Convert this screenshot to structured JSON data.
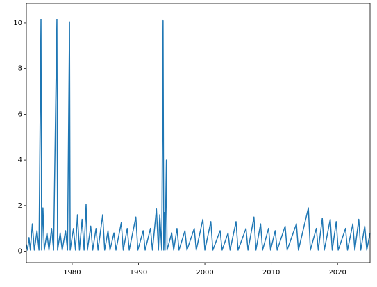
{
  "chart_data": {
    "type": "line",
    "color": "#1f77b4",
    "x": [
      1973.1,
      1973.3,
      1973.5,
      1973.7,
      1974.0,
      1974.3,
      1974.7,
      1975.0,
      1975.3,
      1975.4,
      1975.6,
      1975.8,
      1976.2,
      1976.5,
      1976.9,
      1977.2,
      1977.7,
      1977.8,
      1978.2,
      1978.5,
      1979.0,
      1979.3,
      1979.6,
      1979.7,
      1980.2,
      1980.5,
      1980.8,
      1981.1,
      1981.5,
      1981.8,
      1982.1,
      1982.3,
      1982.8,
      1983.1,
      1983.6,
      1983.9,
      1984.6,
      1984.9,
      1985.4,
      1985.7,
      1986.3,
      1986.6,
      1987.4,
      1987.7,
      1988.3,
      1988.6,
      1989.6,
      1989.9,
      1990.7,
      1991.0,
      1991.8,
      1992.1,
      1992.7,
      1993.0,
      1993.2,
      1993.5,
      1993.7,
      1993.8,
      1993.9,
      1994.0,
      1994.2,
      1994.3,
      1995.0,
      1995.3,
      1995.8,
      1996.1,
      1997.0,
      1997.3,
      1998.4,
      1998.7,
      1999.7,
      2000.0,
      2000.9,
      2001.2,
      2002.3,
      2002.6,
      2003.5,
      2003.8,
      2004.7,
      2005.0,
      2006.2,
      2006.5,
      2007.4,
      2007.7,
      2008.4,
      2008.7,
      2009.6,
      2009.9,
      2010.6,
      2010.9,
      2012.1,
      2012.4,
      2013.8,
      2014.1,
      2015.6,
      2015.9,
      2016.8,
      2017.1,
      2017.7,
      2018.0,
      2018.9,
      2019.2,
      2019.8,
      2020.1,
      2021.2,
      2021.5,
      2022.3,
      2022.6,
      2023.2,
      2023.5,
      2024.1,
      2024.4,
      2024.9
    ],
    "values": [
      0.3,
      0.05,
      0.6,
      0.05,
      1.2,
      0.05,
      0.9,
      0.05,
      10.15,
      0.05,
      1.9,
      0.05,
      0.8,
      0.05,
      1.0,
      0.05,
      10.15,
      0.05,
      0.8,
      0.05,
      0.9,
      0.05,
      10.05,
      0.05,
      1.0,
      0.05,
      1.6,
      0.05,
      1.4,
      0.05,
      2.05,
      0.05,
      1.1,
      0.05,
      1.0,
      0.05,
      1.6,
      0.05,
      0.9,
      0.05,
      0.8,
      0.05,
      1.25,
      0.05,
      1.0,
      0.05,
      1.5,
      0.05,
      0.9,
      0.05,
      1.0,
      0.05,
      1.85,
      0.05,
      1.6,
      0.05,
      10.1,
      0.05,
      1.7,
      0.05,
      4.0,
      0.05,
      0.8,
      0.05,
      1.0,
      0.05,
      0.9,
      0.05,
      1.0,
      0.05,
      1.4,
      0.05,
      1.3,
      0.05,
      0.9,
      0.05,
      0.8,
      0.05,
      1.3,
      0.05,
      1.0,
      0.05,
      1.5,
      0.05,
      1.2,
      0.05,
      1.0,
      0.05,
      0.9,
      0.05,
      1.1,
      0.05,
      1.2,
      0.05,
      1.9,
      0.05,
      1.0,
      0.05,
      1.45,
      0.05,
      1.4,
      0.05,
      1.3,
      0.05,
      1.0,
      0.05,
      1.2,
      0.05,
      1.4,
      0.05,
      1.1,
      0.05,
      0.8
    ],
    "xlim": [
      1973.1,
      2024.9
    ],
    "xticks": [
      1980,
      1990,
      2000,
      2010,
      2020
    ],
    "ylim": [
      -0.5,
      10.85
    ],
    "yticks": [
      0,
      2,
      4,
      6,
      8,
      10
    ]
  }
}
